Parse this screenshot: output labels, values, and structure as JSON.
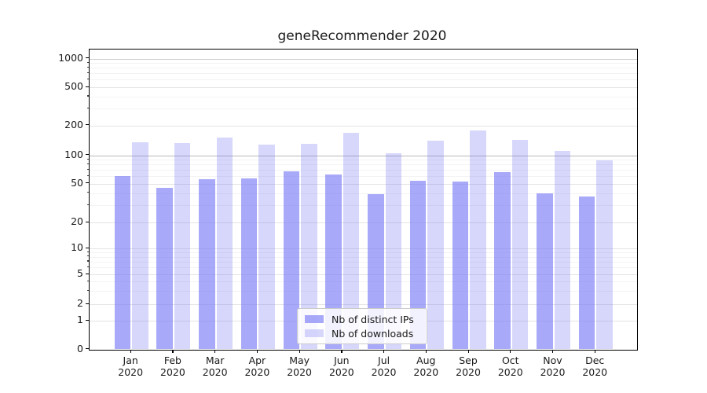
{
  "title": "geneRecommender 2020",
  "legend": {
    "items": [
      {
        "label": "Nb of distinct IPs",
        "series_key": "ips"
      },
      {
        "label": "Nb of downloads",
        "series_key": "downloads"
      }
    ]
  },
  "colors": {
    "ips": "rgba(124,124,246,0.66)",
    "downloads": "rgba(124,124,246,0.30)",
    "grid_minor": "#f3f3f3",
    "grid_major": "#e4e4e4",
    "grid_emphasis_100": "#b8b8b8",
    "grid_emphasis_1000": "#cdcdcd",
    "axis": "#000000",
    "text": "#1a1a1a"
  },
  "chart_data": {
    "type": "bar",
    "title": "geneRecommender 2020",
    "categories": [
      "Jan 2020",
      "Feb 2020",
      "Mar 2020",
      "Apr 2020",
      "May 2020",
      "Jun 2020",
      "Jul 2020",
      "Aug 2020",
      "Sep 2020",
      "Oct 2020",
      "Nov 2020",
      "Dec 2020"
    ],
    "series": [
      {
        "name": "Nb of distinct IPs",
        "values": [
          60,
          45,
          56,
          57,
          67,
          63,
          39,
          54,
          53,
          66,
          40,
          37
        ]
      },
      {
        "name": "Nb of downloads",
        "values": [
          135,
          133,
          152,
          128,
          131,
          168,
          105,
          140,
          178,
          144,
          110,
          89
        ]
      }
    ],
    "y_scale": "symlog",
    "y_ticks": [
      0,
      1,
      2,
      5,
      10,
      20,
      50,
      100,
      200,
      500,
      1000
    ],
    "y_minor_ticks": [
      3,
      4,
      6,
      7,
      8,
      9,
      30,
      40,
      60,
      70,
      80,
      90,
      300,
      400,
      600,
      700,
      800,
      900
    ],
    "ylim": [
      0,
      1400
    ],
    "xlabel": "",
    "ylabel": "",
    "grid": true,
    "legend_position": "lower center"
  }
}
